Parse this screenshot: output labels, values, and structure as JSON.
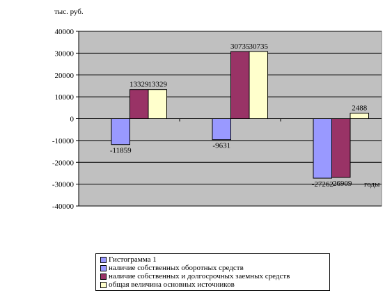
{
  "chart_data": {
    "type": "bar",
    "ylabel": "тыс. руб.",
    "xlabel": "годы",
    "ylim": [
      -40000,
      40000
    ],
    "ytick_step": 10000,
    "grid": true,
    "categories": [
      "",
      "",
      ""
    ],
    "series": [
      {
        "name": "Гистограмма 1",
        "values": [
          null,
          null,
          null
        ],
        "color": "#9999ff"
      },
      {
        "name": "наличие собственных оборотных средств",
        "values": [
          -11859,
          -9631,
          -27262
        ],
        "color": "#9999ff"
      },
      {
        "name": "наличие собственных и долгосрочных заемных средств",
        "values": [
          13329,
          30735,
          -26909
        ],
        "color": "#993366"
      },
      {
        "name": "общая величина основных источников",
        "values": [
          13329,
          30735,
          2488
        ],
        "color": "#ffffcc"
      }
    ],
    "data_labels": [
      [
        "-11859",
        "-9631",
        "-27262"
      ],
      [
        "13329",
        "30735",
        "-26909"
      ],
      [
        "13329",
        "30735",
        "2488"
      ]
    ],
    "legend_position": "bottom",
    "plot_background": "#c0c0c0"
  }
}
